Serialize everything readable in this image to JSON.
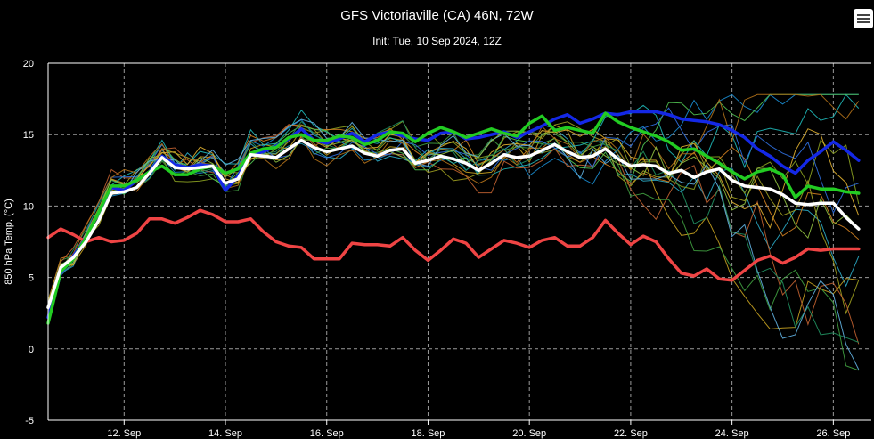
{
  "header": {
    "title": "GFS Victoriaville (CA) 46N, 72W",
    "subtitle": "Init: Tue, 10 Sep 2024, 12Z",
    "menu_icon": "hamburger-menu-icon"
  },
  "chart_data": {
    "type": "line",
    "title": "GFS Victoriaville (CA) 46N, 72W",
    "subtitle": "Init: Tue, 10 Sep 2024, 12Z",
    "ylabel": "850 hPa Temp. (°C)",
    "xlabel": "",
    "ylim": [
      -5,
      20
    ],
    "xlim": [
      10.5,
      26.75
    ],
    "yticks": [
      -5,
      0,
      5,
      10,
      15,
      20
    ],
    "xticks": [
      {
        "value": 12,
        "label": "12. Sep"
      },
      {
        "value": 14,
        "label": "14. Sep"
      },
      {
        "value": 16,
        "label": "16. Sep"
      },
      {
        "value": 18,
        "label": "18. Sep"
      },
      {
        "value": 20,
        "label": "20. Sep"
      },
      {
        "value": 22,
        "label": "22. Sep"
      },
      {
        "value": 24,
        "label": "24. Sep"
      },
      {
        "value": 26,
        "label": "26. Sep"
      }
    ],
    "x_step": 0.25,
    "x_start": 10.5,
    "grid": true,
    "background": "#000000",
    "highlighted_series": [
      {
        "color": "#ef4444",
        "width": 3.5,
        "values": [
          7.8,
          8.4,
          8.0,
          7.5,
          7.8,
          7.5,
          7.6,
          8.1,
          9.1,
          9.1,
          8.8,
          9.2,
          9.7,
          9.4,
          8.9,
          8.9,
          9.1,
          8.2,
          7.5,
          7.2,
          7.1,
          6.3,
          6.3,
          6.3,
          7.4,
          7.3,
          7.3,
          7.2,
          7.8,
          6.9,
          6.2,
          6.9,
          7.7,
          7.4,
          6.4,
          7.0,
          7.6,
          7.4,
          7.1,
          7.6,
          7.8,
          7.2,
          7.2,
          7.8,
          9.0,
          8.1,
          7.3,
          7.9,
          7.5,
          6.3,
          5.3,
          5.1,
          5.6,
          4.9,
          4.8,
          5.5,
          6.2,
          6.5,
          6.0,
          6.4,
          7.0,
          6.9,
          7.0,
          7.0,
          7.0
        ]
      },
      {
        "color": "#1428e6",
        "width": 3.5,
        "values": [
          2.2,
          5.3,
          6.5,
          7.8,
          9.6,
          11.3,
          11.1,
          11.8,
          12.4,
          13.5,
          12.9,
          12.7,
          12.9,
          12.8,
          11.1,
          12.1,
          13.6,
          13.8,
          14.2,
          14.7,
          15.4,
          14.6,
          14.4,
          14.7,
          15.1,
          14.5,
          15.0,
          15.2,
          14.9,
          14.7,
          14.6,
          15.1,
          15.2,
          14.7,
          14.8,
          15.0,
          15.2,
          14.8,
          15.2,
          15.6,
          16.1,
          16.4,
          15.8,
          16.1,
          16.5,
          16.4,
          16.6,
          16.6,
          16.6,
          16.4,
          16.1,
          16.0,
          15.9,
          15.7,
          15.3,
          14.8,
          14.0,
          13.5,
          12.8,
          12.3,
          13.2,
          13.8,
          14.5,
          13.9,
          13.2
        ]
      },
      {
        "color": "#22cc22",
        "width": 3.5,
        "values": [
          1.8,
          5.4,
          6.3,
          7.8,
          9.6,
          11.4,
          11.4,
          11.8,
          12.4,
          12.8,
          12.2,
          12.2,
          12.6,
          12.8,
          12.3,
          12.6,
          13.7,
          14.0,
          14.1,
          14.8,
          15.0,
          14.6,
          14.6,
          14.9,
          14.8,
          14.3,
          14.6,
          15.2,
          15.1,
          14.5,
          15.1,
          15.5,
          15.2,
          14.8,
          15.1,
          15.4,
          15.1,
          14.9,
          15.8,
          16.3,
          15.3,
          15.5,
          15.3,
          15.1,
          16.5,
          15.9,
          15.5,
          15.2,
          14.9,
          14.5,
          13.9,
          14.0,
          13.5,
          13.0,
          12.4,
          11.9,
          12.4,
          12.6,
          12.2,
          10.6,
          11.4,
          11.2,
          11.2,
          11.0,
          10.9
        ]
      },
      {
        "color": "#ffffff",
        "width": 3.5,
        "values": [
          2.9,
          5.7,
          6.4,
          7.5,
          9.0,
          10.9,
          11.0,
          11.3,
          12.3,
          13.4,
          12.7,
          12.6,
          12.7,
          12.8,
          11.6,
          11.9,
          13.6,
          13.5,
          13.4,
          14.0,
          14.6,
          14.1,
          13.8,
          14.0,
          14.2,
          13.7,
          13.5,
          13.9,
          14.0,
          13.0,
          13.2,
          13.5,
          13.3,
          13.0,
          12.5,
          13.0,
          13.6,
          13.4,
          13.5,
          13.9,
          14.3,
          13.8,
          13.4,
          13.5,
          14.0,
          13.3,
          12.8,
          12.9,
          12.8,
          12.3,
          12.5,
          12.0,
          12.4,
          12.6,
          11.8,
          11.4,
          11.3,
          11.2,
          10.8,
          10.2,
          10.1,
          10.2,
          10.2,
          9.2,
          8.4
        ]
      }
    ],
    "ensemble_colors": [
      "#2aa8c4",
      "#8aa020",
      "#c4a020",
      "#1a8cd0",
      "#40a040",
      "#d08020",
      "#a0a020",
      "#1fb8b8",
      "#c06030",
      "#50c050",
      "#3070e0",
      "#e0b030",
      "#209060",
      "#b07018",
      "#60b0e0",
      "#90c040"
    ]
  }
}
